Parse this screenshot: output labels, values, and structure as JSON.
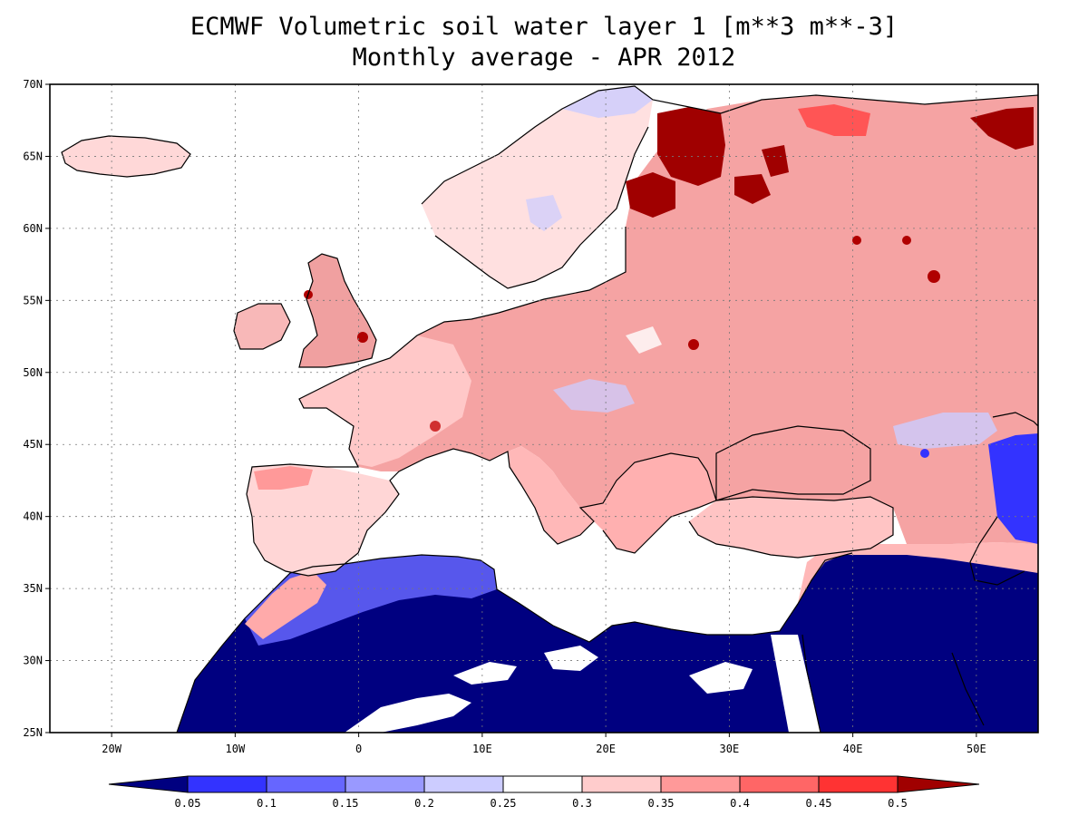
{
  "title": {
    "line1": "ECMWF Volumetric soil water layer 1 [m**3 m**-3]",
    "line2": "Monthly average - APR 2012"
  },
  "axes": {
    "lon_ticks": [
      "20W",
      "10W",
      "0",
      "10E",
      "20E",
      "30E",
      "40E",
      "50E"
    ],
    "lat_ticks": [
      "70N",
      "65N",
      "60N",
      "55N",
      "50N",
      "45N",
      "40N",
      "35N",
      "30N",
      "25N"
    ],
    "lon_range": [
      -25,
      55
    ],
    "lat_range": [
      25,
      70
    ],
    "grid": "dotted"
  },
  "colorbar": {
    "labels": [
      "0.05",
      "0.1",
      "0.15",
      "0.2",
      "0.25",
      "0.3",
      "0.35",
      "0.4",
      "0.45",
      "0.5"
    ],
    "colors": [
      "#000080",
      "#3333ff",
      "#6666ff",
      "#9999ff",
      "#ccccff",
      "#ffffff",
      "#ffcccc",
      "#ff9999",
      "#ff6666",
      "#ff3333",
      "#a00000"
    ]
  },
  "colors": {
    "ocean": "#ffffff",
    "land_europe": "#f5a3a3",
    "land_west": "#ffd0d0",
    "wet_north": "#a00000",
    "dry_sahara": "#000080",
    "coast": "#000000"
  }
}
